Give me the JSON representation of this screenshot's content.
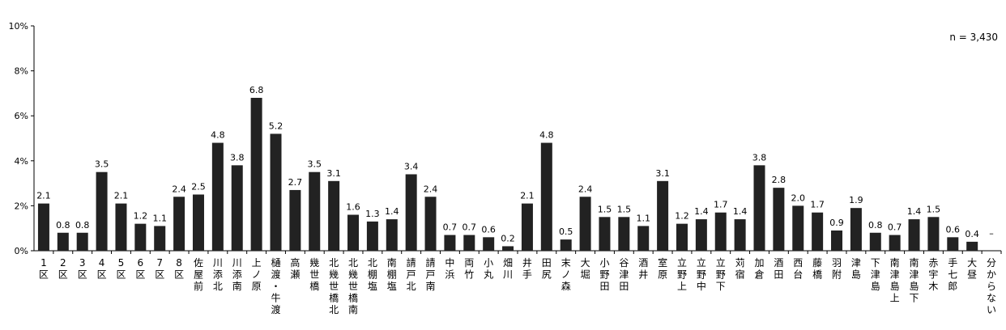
{
  "chart_data": {
    "type": "bar",
    "note": "n = 3,430",
    "yticks": [
      "0%",
      "2%",
      "4%",
      "6%",
      "8%",
      "10%"
    ],
    "ylim": [
      0,
      10
    ],
    "categories": [
      "1区",
      "2区",
      "3区",
      "4区",
      "5区",
      "6区",
      "7区",
      "8区",
      "佐屋前",
      "川添北",
      "川添南",
      "上ノ原",
      "樋渡・牛渡",
      "高瀬",
      "幾世橋",
      "北幾世橋北",
      "北幾世橋南",
      "北棚塩",
      "南棚塩",
      "請戸北",
      "請戸南",
      "中浜",
      "両竹",
      "小丸",
      "畑川",
      "井手",
      "田尻",
      "末ノ森",
      "大堀",
      "小野田",
      "谷津田",
      "酒井",
      "室原",
      "立野上",
      "立野中",
      "立野下",
      "苅宿",
      "加倉",
      "酒田",
      "西台",
      "藤橋",
      "羽附",
      "津島",
      "下津島",
      "南津島上",
      "南津島下",
      "赤宇木",
      "手七郎",
      "大昼",
      "分からない"
    ],
    "values": [
      2.1,
      0.8,
      0.8,
      3.5,
      2.1,
      1.2,
      1.1,
      2.4,
      2.5,
      4.8,
      3.8,
      6.8,
      5.2,
      2.7,
      3.5,
      3.1,
      1.6,
      1.3,
      1.4,
      3.4,
      2.4,
      0.7,
      0.7,
      0.6,
      0.2,
      2.1,
      4.8,
      0.5,
      2.4,
      1.5,
      1.5,
      1.1,
      3.1,
      1.2,
      1.4,
      1.7,
      1.4,
      3.8,
      2.8,
      2.0,
      1.7,
      0.9,
      1.9,
      0.8,
      0.7,
      1.4,
      1.5,
      0.6,
      0.4,
      null
    ],
    "labels": [
      "2.1",
      "0.8",
      "0.8",
      "3.5",
      "2.1",
      "1.2",
      "1.1",
      "2.4",
      "2.5",
      "4.8",
      "3.8",
      "6.8",
      "5.2",
      "2.7",
      "3.5",
      "3.1",
      "1.6",
      "1.3",
      "1.4",
      "3.4",
      "2.4",
      "0.7",
      "0.7",
      "0.6",
      "0.2",
      "2.1",
      "4.8",
      "0.5",
      "2.4",
      "1.5",
      "1.5",
      "1.1",
      "3.1",
      "1.2",
      "1.4",
      "1.7",
      "1.4",
      "3.8",
      "2.8",
      "2.0",
      "1.7",
      "0.9",
      "1.9",
      "0.8",
      "0.7",
      "1.4",
      "1.5",
      "0.6",
      "0.4",
      "–"
    ],
    "bar_color": "#222222"
  }
}
